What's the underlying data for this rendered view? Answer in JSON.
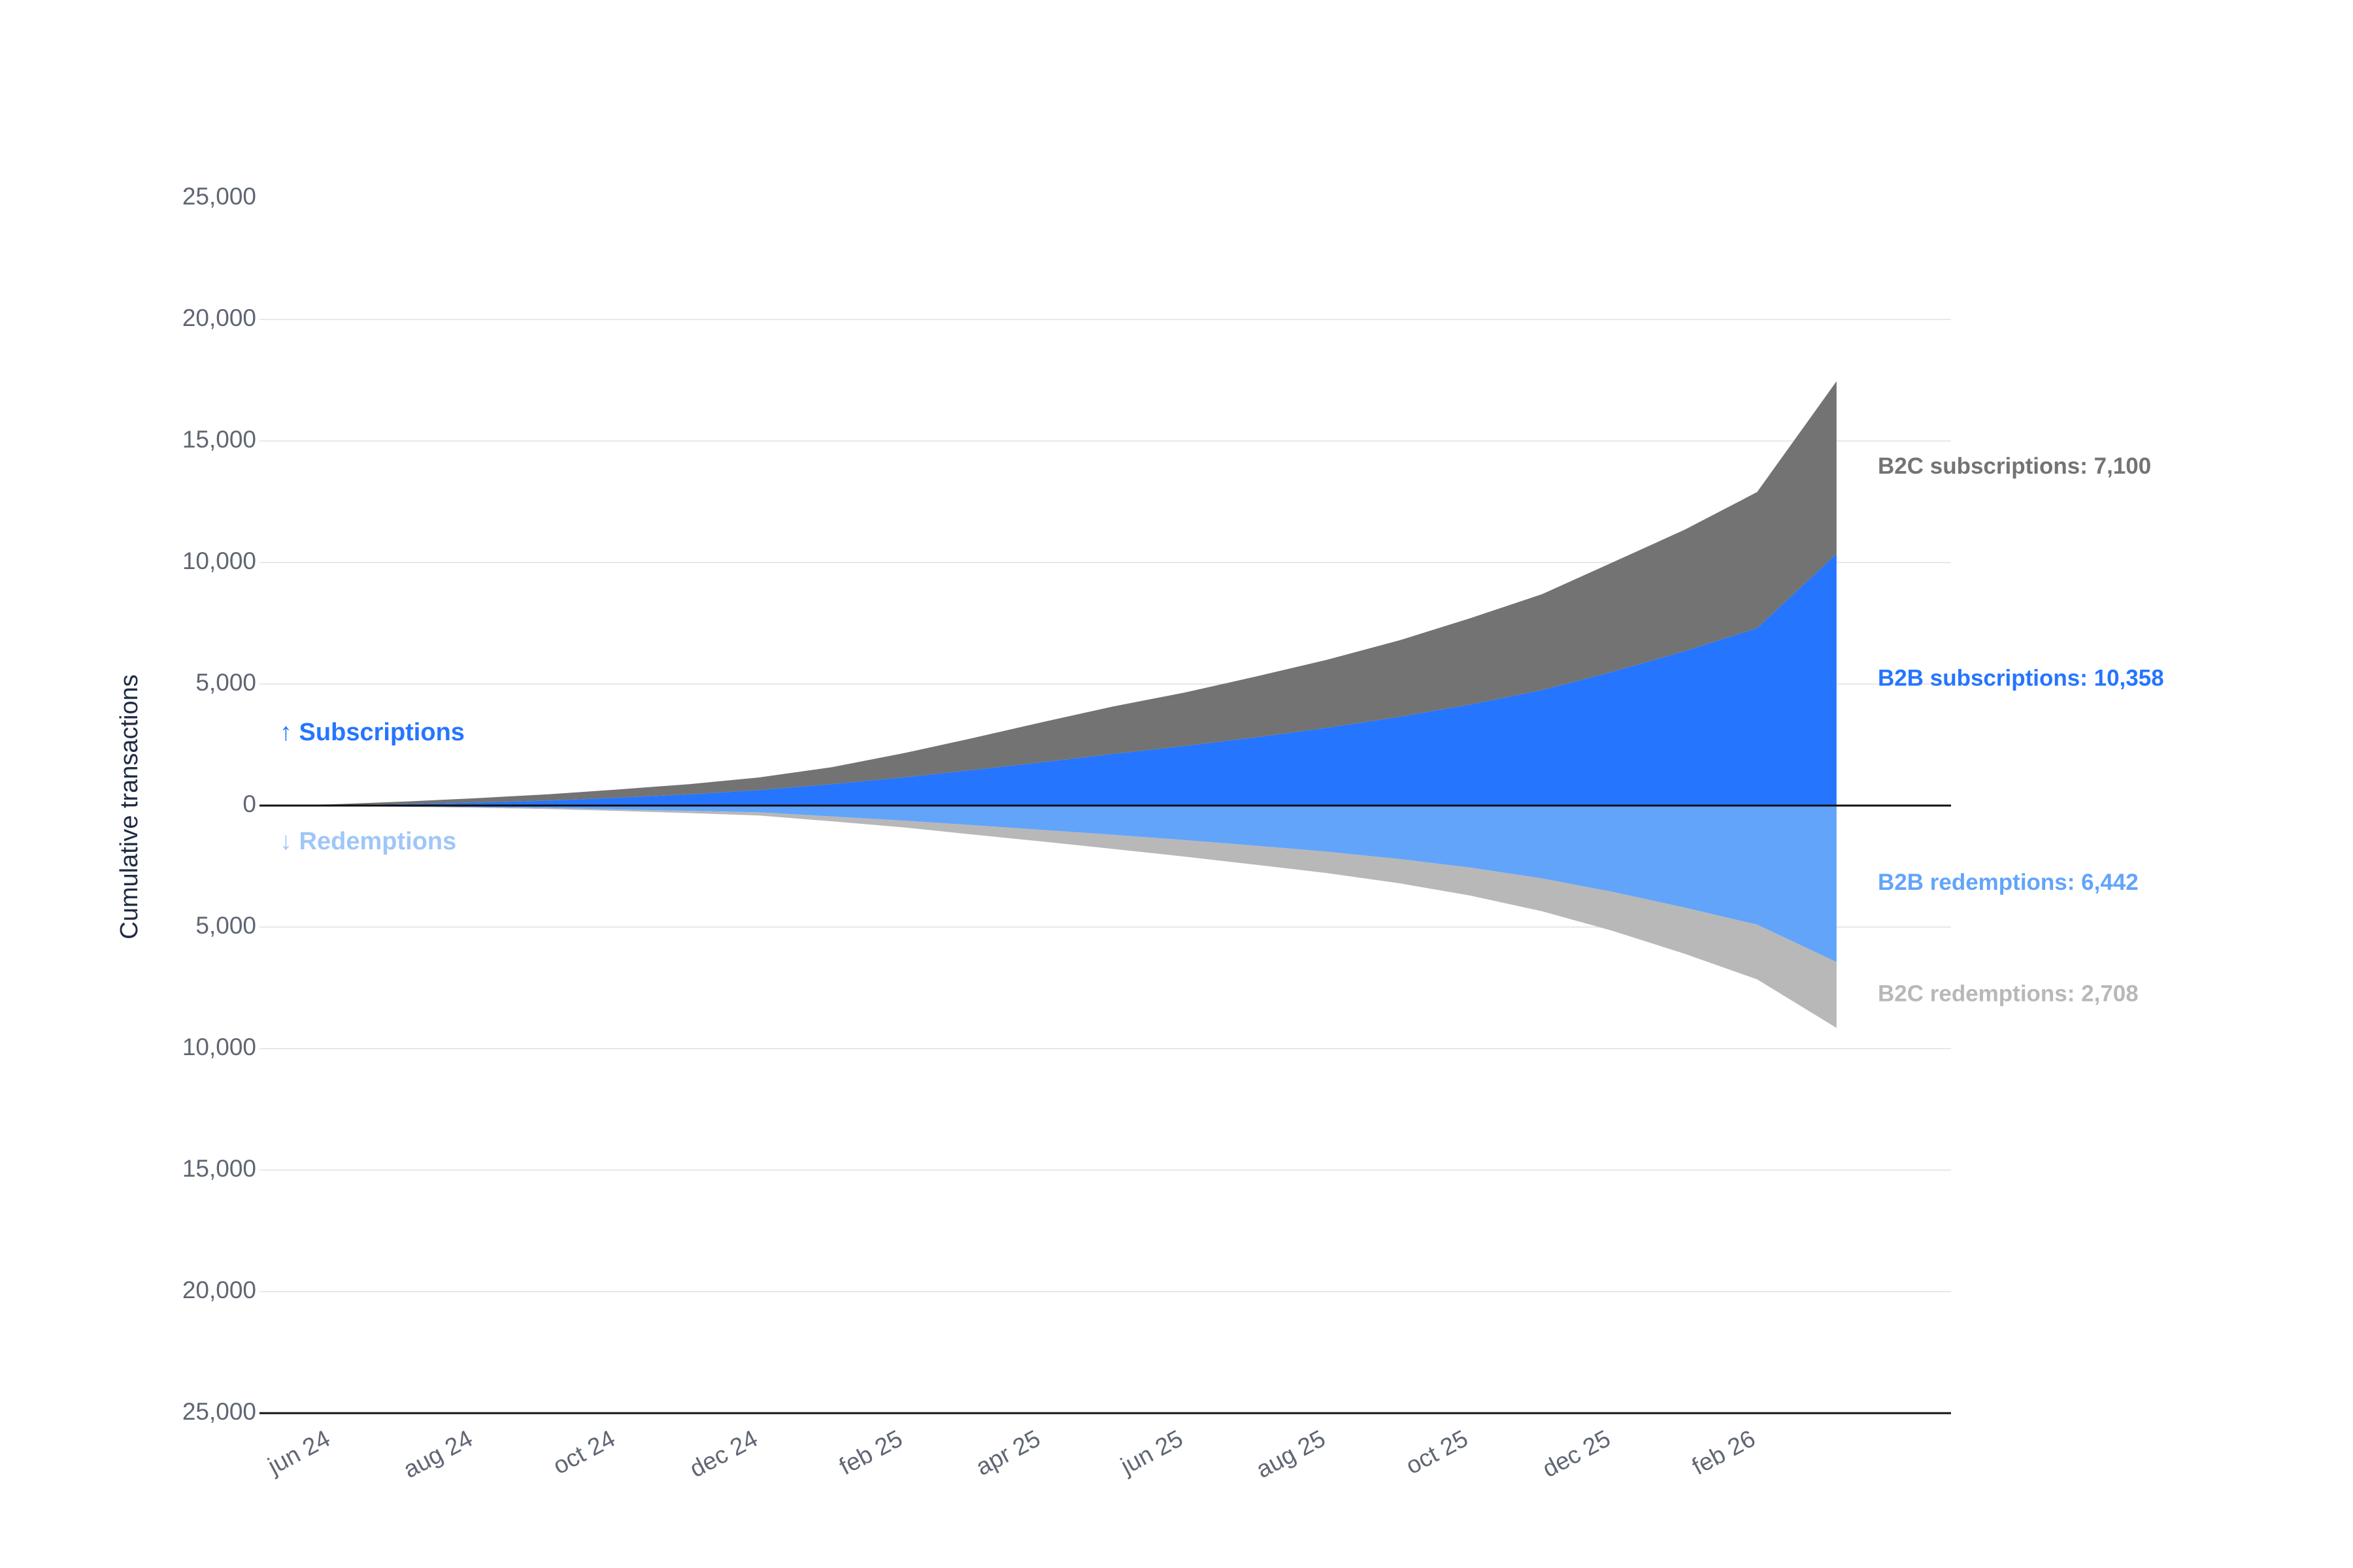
{
  "chart_data": {
    "type": "area",
    "ylabel": "Cumulative transactions",
    "x_ticks": [
      "jun 24",
      "aug 24",
      "oct 24",
      "dec 24",
      "feb 25",
      "apr 25",
      "jun 25",
      "aug 25",
      "oct 25",
      "dec 25",
      "feb 26"
    ],
    "x_range": [
      "2024-05-01",
      "2026-04-25"
    ],
    "x_end": "2026-03-07",
    "ylim": [
      -25000,
      25000
    ],
    "y_ticks": [
      {
        "value": 25000,
        "label": "25,000"
      },
      {
        "value": 20000,
        "label": "20,000"
      },
      {
        "value": 15000,
        "label": "15,000"
      },
      {
        "value": 10000,
        "label": "10,000"
      },
      {
        "value": 5000,
        "label": "5,000"
      },
      {
        "value": 0,
        "label": "0"
      },
      {
        "value": -5000,
        "label": "5,000"
      },
      {
        "value": -10000,
        "label": "10,000"
      },
      {
        "value": -15000,
        "label": "15,000"
      },
      {
        "value": -20000,
        "label": "20,000"
      },
      {
        "value": -25000,
        "label": "25,000"
      }
    ],
    "grid": true,
    "annotations": {
      "up": "↑ Subscriptions",
      "down": "↓ Redemptions"
    },
    "series": [
      {
        "name": "B2B subscriptions",
        "direction": "up",
        "label": "B2B subscriptions: 10,358",
        "color": "#2575ff",
        "x": [
          "2024-05-01",
          "2024-06-01",
          "2024-07-01",
          "2024-08-01",
          "2024-09-01",
          "2024-10-01",
          "2024-11-01",
          "2024-12-01",
          "2025-01-01",
          "2025-02-01",
          "2025-03-01",
          "2025-04-01",
          "2025-05-01",
          "2025-06-01",
          "2025-07-01",
          "2025-08-01",
          "2025-09-01",
          "2025-10-01",
          "2025-11-01",
          "2025-12-01",
          "2026-01-01",
          "2026-02-01",
          "2026-03-07"
        ],
        "values": [
          0,
          20,
          60,
          120,
          200,
          320,
          460,
          640,
          880,
          1160,
          1450,
          1780,
          2120,
          2450,
          2800,
          3200,
          3650,
          4150,
          4750,
          5500,
          6350,
          7300,
          10358
        ]
      },
      {
        "name": "B2C subscriptions",
        "direction": "up",
        "label": "B2C subscriptions: 7,100",
        "color": "#737373",
        "x": [
          "2024-05-01",
          "2024-06-01",
          "2024-07-01",
          "2024-08-01",
          "2024-09-01",
          "2024-10-01",
          "2024-11-01",
          "2024-12-01",
          "2025-01-01",
          "2025-02-01",
          "2025-03-01",
          "2025-04-01",
          "2025-05-01",
          "2025-06-01",
          "2025-07-01",
          "2025-08-01",
          "2025-09-01",
          "2025-10-01",
          "2025-11-01",
          "2025-12-01",
          "2026-01-01",
          "2026-02-01",
          "2026-03-07"
        ],
        "values": [
          0,
          30,
          100,
          180,
          260,
          340,
          420,
          520,
          700,
          1000,
          1300,
          1650,
          1950,
          2200,
          2500,
          2800,
          3150,
          3550,
          3950,
          4500,
          5000,
          5600,
          7100
        ]
      },
      {
        "name": "B2B redemptions",
        "direction": "down",
        "label": "B2B redemptions: 6,442",
        "color": "#62a4fa",
        "x": [
          "2024-05-01",
          "2024-06-01",
          "2024-07-01",
          "2024-08-01",
          "2024-09-01",
          "2024-10-01",
          "2024-11-01",
          "2024-12-01",
          "2025-01-01",
          "2025-02-01",
          "2025-03-01",
          "2025-04-01",
          "2025-05-01",
          "2025-06-01",
          "2025-07-01",
          "2025-08-01",
          "2025-09-01",
          "2025-10-01",
          "2025-11-01",
          "2025-12-01",
          "2026-01-01",
          "2026-02-01",
          "2026-03-07"
        ],
        "values": [
          0,
          10,
          30,
          60,
          100,
          160,
          220,
          280,
          450,
          620,
          800,
          1000,
          1200,
          1420,
          1650,
          1900,
          2200,
          2550,
          3000,
          3550,
          4200,
          4900,
          6442
        ]
      },
      {
        "name": "B2C redemptions",
        "direction": "down",
        "label": "B2C redemptions: 2,708",
        "color": "#b8b8b8",
        "x": [
          "2024-05-01",
          "2024-06-01",
          "2024-07-01",
          "2024-08-01",
          "2024-09-01",
          "2024-10-01",
          "2024-11-01",
          "2024-12-01",
          "2025-01-01",
          "2025-02-01",
          "2025-03-01",
          "2025-04-01",
          "2025-05-01",
          "2025-06-01",
          "2025-07-01",
          "2025-08-01",
          "2025-09-01",
          "2025-10-01",
          "2025-11-01",
          "2025-12-01",
          "2026-01-01",
          "2026-02-01",
          "2026-03-07"
        ],
        "values": [
          0,
          10,
          20,
          30,
          40,
          60,
          90,
          130,
          200,
          280,
          380,
          480,
          580,
          680,
          780,
          880,
          1000,
          1150,
          1350,
          1600,
          1900,
          2250,
          2708
        ]
      }
    ]
  }
}
